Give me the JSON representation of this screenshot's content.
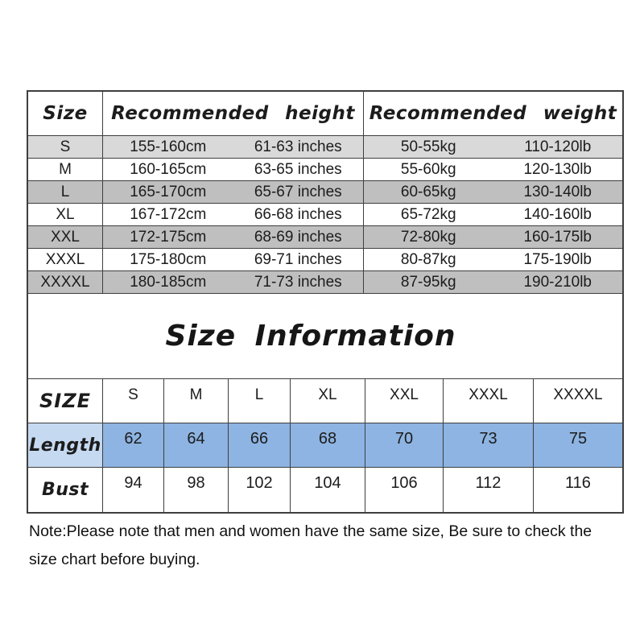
{
  "size_chart": {
    "header": {
      "size": "Size",
      "height": "Recommended height",
      "weight": "Recommended weight"
    },
    "rows": [
      {
        "size": "S",
        "height_cm": "155-160cm",
        "height_in": "61-63 inches",
        "weight_kg": "50-55kg",
        "weight_lb": "110-120lb",
        "shade": "light"
      },
      {
        "size": "M",
        "height_cm": "160-165cm",
        "height_in": "63-65 inches",
        "weight_kg": "55-60kg",
        "weight_lb": "120-130lb",
        "shade": "white"
      },
      {
        "size": "L",
        "height_cm": "165-170cm",
        "height_in": "65-67 inches",
        "weight_kg": "60-65kg",
        "weight_lb": "130-140lb",
        "shade": "dark"
      },
      {
        "size": "XL",
        "height_cm": "167-172cm",
        "height_in": "66-68 inches",
        "weight_kg": "65-72kg",
        "weight_lb": "140-160lb",
        "shade": "white"
      },
      {
        "size": "XXL",
        "height_cm": "172-175cm",
        "height_in": "68-69 inches",
        "weight_kg": "72-80kg",
        "weight_lb": "160-175lb",
        "shade": "dark"
      },
      {
        "size": "XXXL",
        "height_cm": "175-180cm",
        "height_in": "69-71 inches",
        "weight_kg": "80-87kg",
        "weight_lb": "175-190lb",
        "shade": "white"
      },
      {
        "size": "XXXXL",
        "height_cm": "180-185cm",
        "height_in": "71-73 inches",
        "weight_kg": "87-95kg",
        "weight_lb": "190-210lb",
        "shade": "dark"
      }
    ]
  },
  "section_title": "Size Information",
  "measurements": {
    "corner_label": "SIZE",
    "sizes": [
      "S",
      "M",
      "L",
      "XL",
      "XXL",
      "XXXL",
      "XXXXL"
    ],
    "rows": [
      {
        "label": "Length",
        "values": [
          "62",
          "64",
          "66",
          "68",
          "70",
          "73",
          "75"
        ],
        "style": "blue"
      },
      {
        "label": "Bust",
        "values": [
          "94",
          "98",
          "102",
          "104",
          "106",
          "112",
          "116"
        ],
        "style": "white"
      }
    ]
  },
  "note": "Note:Please note that men and women have the same size, Be sure to check the size chart before buying.",
  "colors": {
    "row_light_gray": "#d9d9d9",
    "row_dark_gray": "#bfbfbf",
    "length_label_blue": "#c5d9f1",
    "length_value_blue": "#8db4e2",
    "border": "#3e3e3e",
    "background": "#ffffff"
  }
}
